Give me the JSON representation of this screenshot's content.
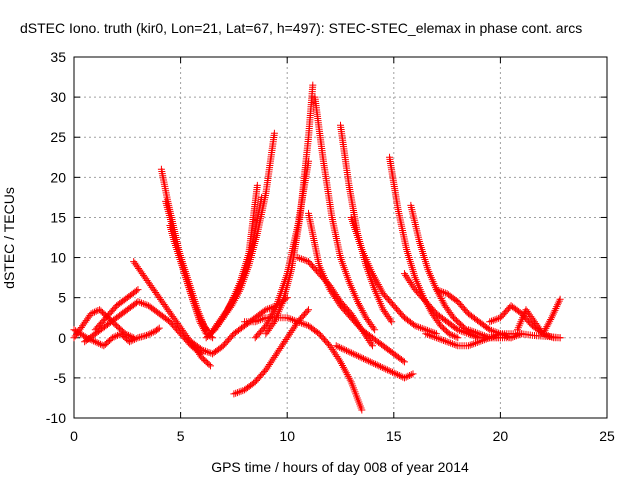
{
  "chart_data": {
    "type": "scatter",
    "title": "dSTEC Iono. truth (kir0, Lon=21, Lat=67, h=497): STEC-STEC_elemax in phase cont. arcs",
    "xlabel": "GPS time / hours of day 008 of year 2014",
    "ylabel": "dSTEC  / TECUs",
    "xlim": [
      0,
      25
    ],
    "ylim": [
      -10,
      35
    ],
    "xticks": [
      0,
      5,
      10,
      15,
      20,
      25
    ],
    "yticks": [
      -10,
      -5,
      0,
      5,
      10,
      15,
      20,
      25,
      30,
      35
    ],
    "grid": true,
    "marker": "+",
    "series_color": "#ff0000",
    "series": [
      {
        "x": [
          0.0,
          0.3,
          0.6,
          1.0,
          1.4,
          1.8,
          2.2,
          2.6,
          3.0,
          3.4,
          3.8,
          4.0
        ],
        "y": [
          1.0,
          0.5,
          0.0,
          -0.5,
          -1.0,
          0.0,
          0.5,
          -0.5,
          0.0,
          0.3,
          0.8,
          1.2
        ]
      },
      {
        "x": [
          0.0,
          0.4,
          0.8,
          1.2,
          1.6,
          2.0,
          2.4,
          2.8
        ],
        "y": [
          0.0,
          1.5,
          3.0,
          3.5,
          2.5,
          1.5,
          0.5,
          0.0
        ]
      },
      {
        "x": [
          0.5,
          1.0,
          1.5,
          2.0,
          2.5,
          3.0,
          3.5,
          4.0,
          4.5,
          5.0,
          5.5,
          6.0
        ],
        "y": [
          -0.5,
          0.5,
          1.5,
          2.5,
          3.5,
          4.5,
          4.0,
          3.0,
          2.0,
          0.5,
          -1.0,
          -2.0
        ]
      },
      {
        "x": [
          1.0,
          1.5,
          2.0,
          2.5,
          3.0
        ],
        "y": [
          1.0,
          2.5,
          4.0,
          5.0,
          6.0
        ]
      },
      {
        "x": [
          2.8,
          3.2,
          3.6,
          4.0,
          4.4,
          4.8,
          5.2,
          5.6,
          6.0,
          6.4
        ],
        "y": [
          9.5,
          8.0,
          6.5,
          5.0,
          3.5,
          2.0,
          0.5,
          -1.0,
          -2.5,
          -3.5
        ]
      },
      {
        "x": [
          4.1,
          4.4,
          4.7,
          5.0,
          5.3,
          5.6,
          5.9,
          6.2,
          6.5
        ],
        "y": [
          21.0,
          17.0,
          13.5,
          10.0,
          7.0,
          4.5,
          2.0,
          0.5,
          0.0
        ]
      },
      {
        "x": [
          4.3,
          4.6,
          4.9,
          5.2,
          5.5,
          5.8,
          6.1,
          6.4
        ],
        "y": [
          17.0,
          14.0,
          11.0,
          8.5,
          6.0,
          3.5,
          1.5,
          0.5
        ]
      },
      {
        "x": [
          4.5,
          4.7,
          5.0,
          5.3,
          5.6,
          5.9,
          6.2
        ],
        "y": [
          14.0,
          12.0,
          9.5,
          7.0,
          4.5,
          2.5,
          1.0
        ]
      },
      {
        "x": [
          5.5,
          6.0,
          6.5,
          7.0,
          7.5,
          8.0,
          8.5,
          9.0,
          9.5,
          10.0
        ],
        "y": [
          -0.5,
          -1.5,
          -2.0,
          -1.0,
          0.5,
          1.5,
          2.5,
          3.5,
          4.0,
          5.0
        ]
      },
      {
        "x": [
          6.2,
          6.6,
          7.0,
          7.4,
          7.8,
          8.2,
          8.6,
          9.0,
          9.4
        ],
        "y": [
          0.0,
          1.0,
          2.5,
          4.0,
          6.0,
          9.0,
          13.0,
          18.0,
          25.5
        ]
      },
      {
        "x": [
          6.4,
          6.8,
          7.2,
          7.6,
          8.0,
          8.4,
          8.8
        ],
        "y": [
          0.5,
          2.0,
          3.5,
          5.5,
          8.0,
          12.0,
          17.5
        ]
      },
      {
        "x": [
          6.6,
          7.0,
          7.4,
          7.8,
          8.2,
          8.6
        ],
        "y": [
          1.0,
          2.5,
          4.5,
          7.0,
          10.5,
          19.0
        ]
      },
      {
        "x": [
          7.5,
          8.0,
          8.5,
          9.0,
          9.5,
          10.0,
          10.5,
          11.0
        ],
        "y": [
          -7.0,
          -6.5,
          -5.5,
          -4.0,
          -2.0,
          0.0,
          2.0,
          3.5
        ]
      },
      {
        "x": [
          8.0,
          8.5,
          9.0,
          9.5,
          10.0,
          10.5,
          11.0,
          11.5,
          12.0,
          12.5,
          13.0,
          13.5
        ],
        "y": [
          2.0,
          2.0,
          2.5,
          2.5,
          2.5,
          2.0,
          1.5,
          0.5,
          -1.0,
          -3.0,
          -5.5,
          -9.0
        ]
      },
      {
        "x": [
          8.5,
          9.0,
          9.5,
          10.0,
          10.5,
          11.0
        ],
        "y": [
          0.0,
          1.5,
          4.0,
          8.0,
          14.0,
          22.0
        ]
      },
      {
        "x": [
          9.0,
          9.4,
          9.8,
          10.2,
          10.6,
          11.0,
          11.2
        ],
        "y": [
          0.5,
          2.0,
          4.5,
          8.5,
          15.0,
          25.0,
          31.5
        ]
      },
      {
        "x": [
          10.5,
          11.0,
          11.5,
          12.0,
          12.5,
          13.0,
          13.5,
          14.0
        ],
        "y": [
          10.0,
          9.5,
          8.0,
          6.5,
          4.5,
          3.0,
          1.0,
          -1.0
        ]
      },
      {
        "x": [
          11.0,
          11.5,
          12.0,
          12.5,
          13.0,
          13.5,
          14.0,
          14.5,
          15.0,
          15.5
        ],
        "y": [
          15.5,
          9.0,
          6.0,
          4.0,
          2.5,
          1.0,
          0.0,
          -1.0,
          -2.0,
          -3.0
        ]
      },
      {
        "x": [
          11.3,
          11.7,
          12.1,
          12.5,
          12.9,
          13.3,
          13.7,
          14.1
        ],
        "y": [
          30.0,
          22.0,
          15.0,
          10.0,
          7.0,
          4.5,
          2.5,
          1.0
        ]
      },
      {
        "x": [
          12.5,
          12.9,
          13.3,
          13.7,
          14.1,
          14.5,
          14.9
        ],
        "y": [
          26.5,
          19.0,
          13.0,
          9.0,
          6.0,
          3.5,
          2.0
        ]
      },
      {
        "x": [
          12.3,
          12.7,
          13.1,
          13.5,
          13.9,
          14.3,
          14.7,
          15.1,
          15.5,
          15.9
        ],
        "y": [
          -1.0,
          -1.5,
          -2.0,
          -2.5,
          -3.0,
          -3.5,
          -4.0,
          -4.5,
          -5.0,
          -4.5
        ]
      },
      {
        "x": [
          13.0,
          13.5,
          14.0,
          14.5,
          15.0,
          15.5,
          16.0,
          16.5,
          17.0
        ],
        "y": [
          15.0,
          11.0,
          8.0,
          5.5,
          4.0,
          2.5,
          1.5,
          1.0,
          0.5
        ]
      },
      {
        "x": [
          14.8,
          15.2,
          15.6,
          16.0,
          16.4,
          16.8,
          17.2,
          17.6,
          18.0
        ],
        "y": [
          22.5,
          16.0,
          11.0,
          7.5,
          5.0,
          3.0,
          1.5,
          0.5,
          0.0
        ]
      },
      {
        "x": [
          15.5,
          16.0,
          16.5,
          17.0,
          17.5,
          18.0,
          18.5,
          19.0,
          19.5,
          20.0
        ],
        "y": [
          8.0,
          6.0,
          4.5,
          3.0,
          2.0,
          1.0,
          0.5,
          0.0,
          0.0,
          0.0
        ]
      },
      {
        "x": [
          15.8,
          16.2,
          16.6,
          17.0,
          17.4,
          17.8,
          18.2,
          18.6,
          19.0
        ],
        "y": [
          16.5,
          12.0,
          8.5,
          6.0,
          4.0,
          2.5,
          1.5,
          0.5,
          0.0
        ]
      },
      {
        "x": [
          16.5,
          17.0,
          17.5,
          18.0,
          18.5,
          19.0,
          19.5,
          20.0,
          20.5,
          21.0
        ],
        "y": [
          0.5,
          0.0,
          -0.5,
          -1.0,
          -1.0,
          -0.5,
          0.0,
          0.5,
          0.5,
          0.5
        ]
      },
      {
        "x": [
          17.0,
          17.5,
          18.0,
          18.5,
          19.0,
          19.5,
          20.0,
          20.5
        ],
        "y": [
          6.0,
          5.5,
          4.5,
          3.0,
          2.0,
          1.0,
          0.5,
          0.0
        ]
      },
      {
        "x": [
          18.5,
          19.0,
          19.5,
          20.0,
          20.5,
          21.0,
          21.5,
          22.0,
          22.5,
          22.8
        ],
        "y": [
          1.0,
          0.5,
          0.0,
          0.0,
          0.0,
          0.5,
          0.3,
          0.2,
          0.1,
          0.0
        ]
      },
      {
        "x": [
          19.5,
          20.0,
          20.5,
          21.0,
          21.5,
          22.0,
          22.5,
          22.8
        ],
        "y": [
          2.0,
          2.5,
          4.0,
          3.0,
          1.5,
          0.5,
          0.0,
          0.0
        ]
      },
      {
        "x": [
          20.8,
          21.2,
          21.6,
          22.0,
          22.4,
          22.8
        ],
        "y": [
          1.0,
          3.5,
          2.0,
          0.5,
          2.5,
          4.8
        ]
      }
    ]
  }
}
